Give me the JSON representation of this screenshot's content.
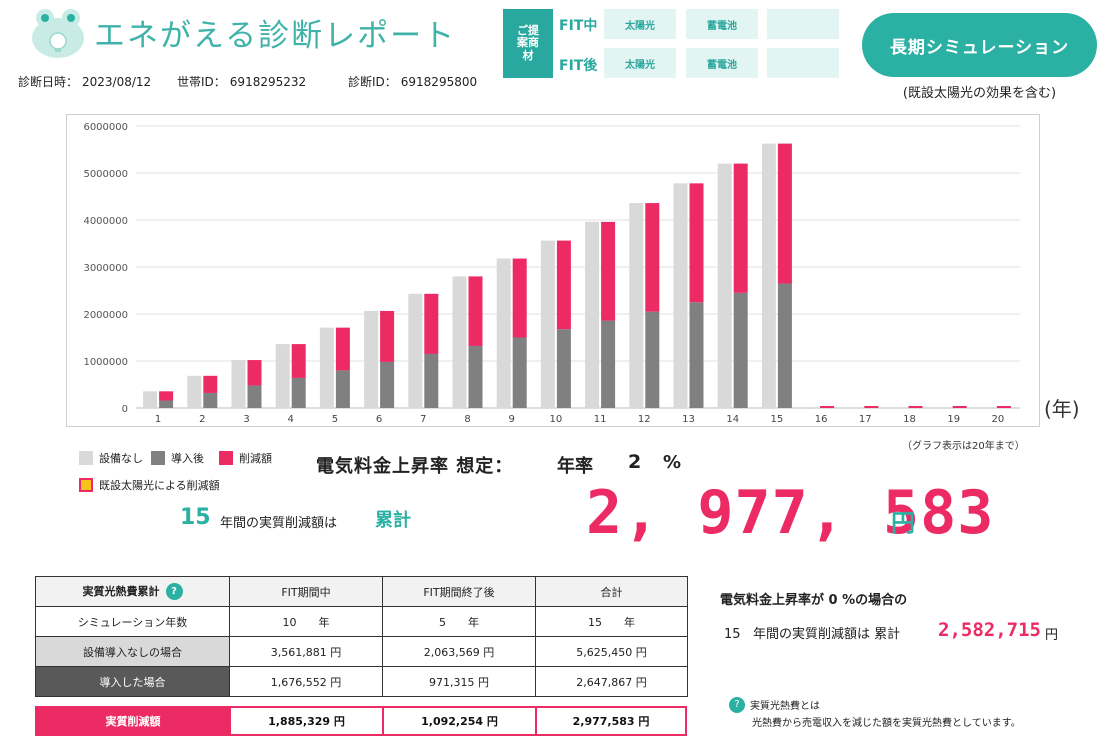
{
  "header": {
    "app_title": "エネがえる診断レポート",
    "meta": {
      "date_label": "診断日時：",
      "date_value": "2023/08/12",
      "household_label": "世帯ID：",
      "household_value": "6918295232",
      "diag_label": "診断ID：",
      "diag_value": "6918295800"
    },
    "proposal_label": "ご提案商材",
    "fit_during_label": "FIT中",
    "fit_after_label": "FIT後",
    "solar_chip": "太陽光",
    "battery_chip": "蓄電池",
    "sim_button": "長期シミュレーション",
    "sim_note": "(既設太陽光の効果を含む)"
  },
  "colors": {
    "teal": "#2bb0a4",
    "pink": "#ec2b64",
    "bar_without": "#d9d9d9",
    "bar_with": "#808080",
    "existing_solar": "#f7c21e"
  },
  "chart_data": {
    "type": "bar",
    "categories": [
      "1",
      "2",
      "3",
      "4",
      "5",
      "6",
      "7",
      "8",
      "9",
      "10",
      "11",
      "12",
      "13",
      "14",
      "15",
      "16",
      "17",
      "18",
      "19",
      "20"
    ],
    "series": [
      {
        "name": "設備なし",
        "values": [
          355000,
          685000,
          1020000,
          1360000,
          1710000,
          2065000,
          2430000,
          2800000,
          3180000,
          3561881,
          3960000,
          4360000,
          4780000,
          5200000,
          5625450,
          0,
          0,
          0,
          0,
          0
        ]
      },
      {
        "name": "導入後",
        "values": [
          160000,
          320000,
          480000,
          640000,
          800000,
          980000,
          1150000,
          1320000,
          1500000,
          1676552,
          1860000,
          2050000,
          2250000,
          2450000,
          2647867,
          0,
          0,
          0,
          0,
          0
        ]
      },
      {
        "name": "削減額",
        "values": [
          195000,
          365000,
          540000,
          720000,
          910000,
          1085000,
          1280000,
          1480000,
          1680000,
          1885329,
          2100000,
          2310000,
          2530000,
          2750000,
          2977583,
          0,
          0,
          0,
          0,
          0
        ]
      }
    ],
    "yticks": [
      "0",
      "1000000",
      "2000000",
      "3000000",
      "4000000",
      "5000000",
      "6000000"
    ],
    "ylim": [
      0,
      6000000
    ],
    "x_unit": "(年)",
    "note": "（グラフ表示は20年まで）",
    "legend": {
      "without": "設備なし",
      "with": "導入後",
      "reduction": "削減額",
      "existing": "既設太陽光による削減額"
    }
  },
  "rate": {
    "title": "電気料金上昇率 想定：",
    "year_label": "年率",
    "value": "2",
    "unit": "%"
  },
  "summary": {
    "years": "15",
    "years_text": "年間の実質削減額は",
    "cumulative_label": "累計",
    "total": "2, 977, 583",
    "yen": "円"
  },
  "table": {
    "header": [
      "実質光熱費累計",
      "FIT期間中",
      "FIT期間終了後",
      "合計"
    ],
    "help_icon": "?",
    "rows": [
      {
        "label": "シミュレーション年数",
        "values": [
          "10　　年",
          "5　　年",
          "15　　年"
        ]
      },
      {
        "label": "設備導入なしの場合",
        "values": [
          "3,561,881 円",
          "2,063,569 円",
          "5,625,450 円"
        ]
      },
      {
        "label": "導入した場合",
        "values": [
          "1,676,552 円",
          "971,315 円",
          "2,647,867 円"
        ]
      }
    ],
    "net": {
      "label": "実質削減額",
      "values": [
        "1,885,329 円",
        "1,092,254 円",
        "2,977,583 円"
      ]
    }
  },
  "zero_rate": {
    "line1": "電気料金上昇率が 0 %の場合の",
    "years": "15",
    "line2_text": "年間の実質削減額は 累計",
    "total": "2,582,715",
    "unit": "円"
  },
  "definition": {
    "icon": "?",
    "title": "実質光熱費とは",
    "text": "光熱費から売電収入を減じた額を実質光熱費としています。"
  }
}
